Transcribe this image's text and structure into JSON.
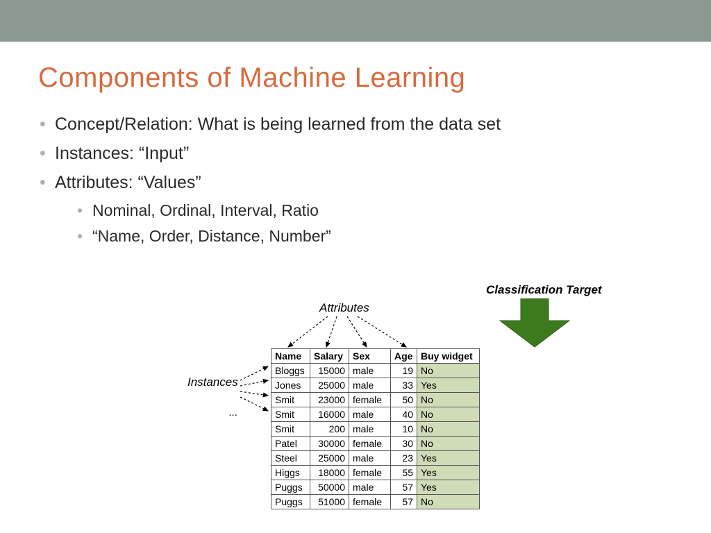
{
  "colors": {
    "top_bar": "#8a9a92",
    "title": "#d66b3e",
    "bullet": "#b0b0b0",
    "text": "#2a2a2a",
    "target_header_bg": "#bccb9a",
    "target_cell_bg": "#d0dcb8",
    "arrow_fill": "#3d7a1e",
    "border": "#555555"
  },
  "title": "Components of Machine Learning",
  "bullets": [
    "Concept/Relation: What is being learned from the data set",
    "Instances: “Input”",
    "Attributes: “Values”"
  ],
  "sub_bullets": [
    "Nominal, Ordinal, Interval, Ratio",
    "“Name, Order, Distance, Number”"
  ],
  "figure": {
    "labels": {
      "attributes": "Attributes",
      "classification": "Classification Target",
      "instances": "Instances",
      "ellipsis": "..."
    },
    "table": {
      "columns": [
        "Name",
        "Salary",
        "Sex",
        "Age",
        "Buy widget"
      ],
      "rows": [
        [
          "Bloggs",
          "15000",
          "male",
          "19",
          "No"
        ],
        [
          "Jones",
          "25000",
          "male",
          "33",
          "Yes"
        ],
        [
          "Smit",
          "23000",
          "female",
          "50",
          "No"
        ],
        [
          "Smit",
          "16000",
          "male",
          "40",
          "No"
        ],
        [
          "Smit",
          "200",
          "male",
          "10",
          "No"
        ],
        [
          "Patel",
          "30000",
          "female",
          "30",
          "No"
        ],
        [
          "Steel",
          "25000",
          "male",
          "23",
          "Yes"
        ],
        [
          "Higgs",
          "18000",
          "female",
          "55",
          "Yes"
        ],
        [
          "Puggs",
          "50000",
          "male",
          "57",
          "Yes"
        ],
        [
          "Puggs",
          "51000",
          "female",
          "57",
          "No"
        ]
      ]
    }
  }
}
